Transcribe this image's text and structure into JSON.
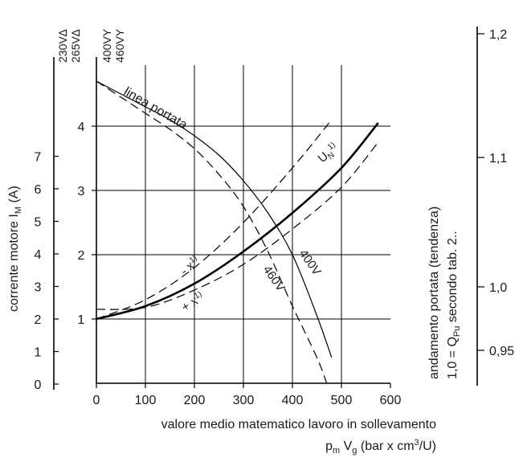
{
  "chart_data": {
    "type": "line",
    "x_axis": {
      "range": [
        0,
        600
      ],
      "ticks": [
        0,
        100,
        200,
        300,
        400,
        500,
        600
      ],
      "label_line1": "valore medio matematico lavoro in sollevamento",
      "label_line2": "p",
      "label_line2_sub1": "m",
      "label_line2_mid": " V",
      "label_line2_sub2": "g",
      "label_line2_end1": " (bar x cm",
      "label_line2_sup": "3",
      "label_line2_end2": "/U)"
    },
    "y_axis_left_outer": {
      "header_line1": "230V∆",
      "header_line2": "265V∆",
      "ticks": [
        "0",
        "1",
        "2",
        "3",
        "4",
        "5",
        "6",
        "7"
      ],
      "label": "corrente motore I",
      "label_sub": "M",
      "label_end": " (A)"
    },
    "y_axis_left_inner": {
      "header_line1": "400VY",
      "header_line2": "460VY",
      "ticks": [
        "1",
        "2",
        "3",
        "4"
      ]
    },
    "y_axis_right": {
      "ticks": [
        "0,95",
        "1,0",
        "1,1",
        "1,2"
      ],
      "label_line1": "andamento portata (tendenza)",
      "label_line2": "1,0 = Q",
      "label_line2_sub": "Pu",
      "label_line2_end": " secondo tab. 2.."
    },
    "annotations": {
      "linea_portata": "linea portata",
      "un": "U",
      "un_sub": "N",
      "un_sup": "1)",
      "minus_x": "- x",
      "minus_x_sup": "1)",
      "plus_x": "+ x",
      "plus_x_sup": "1)",
      "v400": "400V",
      "v460": "460V"
    },
    "grid": true,
    "series": [
      {
        "name": "U",
        "style": "solid-thick",
        "x": [
          0,
          100,
          200,
          300,
          400,
          500,
          575
        ],
        "current_inner": [
          1.0,
          1.2,
          1.55,
          2.05,
          2.65,
          3.35,
          4.05
        ]
      },
      {
        "name": "- x",
        "style": "dashed",
        "x": [
          0,
          100,
          200,
          300,
          400,
          480
        ],
        "current_inner": [
          1.0,
          1.3,
          1.8,
          2.5,
          3.35,
          4.1
        ]
      },
      {
        "name": "+ x",
        "style": "dashed",
        "x": [
          0,
          100,
          200,
          300,
          400,
          500,
          575
        ],
        "current_inner": [
          1.15,
          1.18,
          1.45,
          1.85,
          2.4,
          3.05,
          3.75
        ]
      },
      {
        "name": "linea portata 400V",
        "style": "solid-thin",
        "x": [
          0,
          50,
          100,
          150,
          200,
          250,
          300,
          350,
          400,
          450,
          480
        ],
        "current_inner": [
          4.7,
          4.5,
          4.3,
          4.1,
          3.85,
          3.55,
          3.15,
          2.65,
          2.0,
          1.05,
          0.4
        ]
      },
      {
        "name": "linea portata 460V",
        "style": "dashed",
        "x": [
          0,
          50,
          100,
          150,
          200,
          250,
          300,
          350,
          400,
          450,
          470
        ],
        "current_inner": [
          4.7,
          4.45,
          4.2,
          3.95,
          3.65,
          3.25,
          2.75,
          2.05,
          1.2,
          0.4,
          0.0
        ]
      }
    ]
  }
}
